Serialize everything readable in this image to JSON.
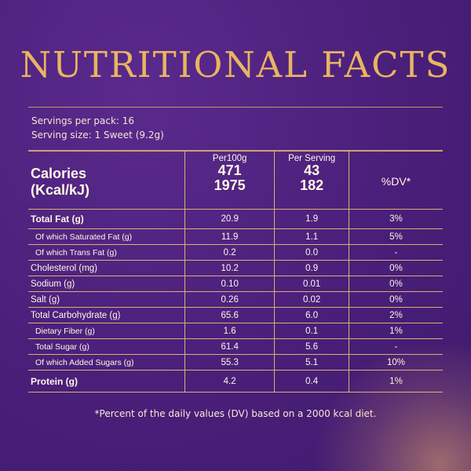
{
  "title": "NUTRITIONAL FACTS",
  "servings": {
    "per_pack": "Servings per pack: 16",
    "size": "Serving size: 1 Sweet (9.2g)"
  },
  "table": {
    "columns": [
      "Per100g",
      "Per Serving",
      "%DV*"
    ],
    "calories": {
      "label_line1": "Calories",
      "label_line2": "(Kcal/kJ)",
      "per100g_kcal": "471",
      "per100g_kj": "1975",
      "perserving_kcal": "43",
      "perserving_kj": "182"
    },
    "rows": [
      {
        "label": "Total Fat (g)",
        "per100g": "20.9",
        "serving": "1.9",
        "dv": "3%"
      },
      {
        "label": "Of which Saturated Fat (g)",
        "per100g": "11.9",
        "serving": "1.1",
        "dv": "5%"
      },
      {
        "label": "Of which Trans Fat (g)",
        "per100g": "0.2",
        "serving": "0.0",
        "dv": "-"
      },
      {
        "label": "Cholesterol (mg)",
        "per100g": "10.2",
        "serving": "0.9",
        "dv": "0%"
      },
      {
        "label": "Sodium (g)",
        "per100g": "0.10",
        "serving": "0.01",
        "dv": "0%"
      },
      {
        "label": "Salt (g)",
        "per100g": "0.26",
        "serving": "0.02",
        "dv": "0%"
      },
      {
        "label": "Total Carbohydrate (g)",
        "per100g": "65.6",
        "serving": "6.0",
        "dv": "2%"
      },
      {
        "label": "Dietary Fiber (g)",
        "per100g": "1.6",
        "serving": "0.1",
        "dv": "1%"
      },
      {
        "label": "Total Sugar (g)",
        "per100g": "61.4",
        "serving": "5.6",
        "dv": "-"
      },
      {
        "label": "Of which Added Sugars (g)",
        "per100g": "55.3",
        "serving": "5.1",
        "dv": "10%"
      },
      {
        "label": "Protein (g)",
        "per100g": "4.2",
        "serving": "0.4",
        "dv": "1%"
      }
    ]
  },
  "footnote": "*Percent of the daily values (DV) based on a 2000 kcal diet.",
  "colors": {
    "background": "#4a1f7a",
    "title": "#e9b462",
    "rule": "#d9b170",
    "text": "#fff6e6"
  }
}
